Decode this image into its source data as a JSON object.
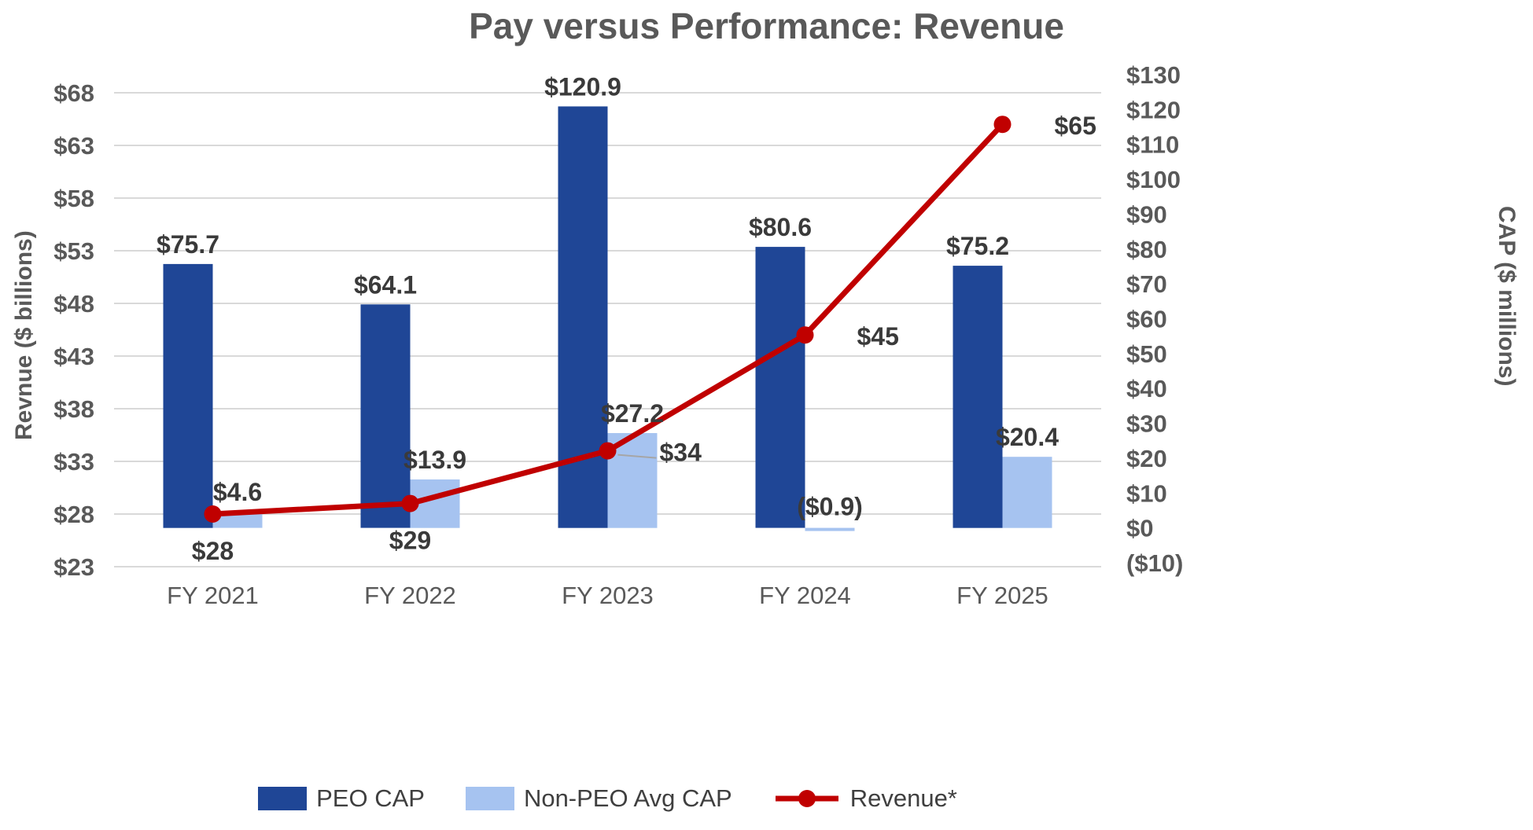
{
  "title": "Pay versus Performance: Revenue",
  "left_axis": {
    "title": "Revnue ($ billions)",
    "min": 23,
    "max": 68,
    "tick_values": [
      68,
      63,
      58,
      53,
      48,
      43,
      38,
      33,
      28,
      23
    ],
    "tick_labels": [
      "$68",
      "$63",
      "$58",
      "$53",
      "$48",
      "$43",
      "$38",
      "$33",
      "$28",
      "$23"
    ]
  },
  "right_axis": {
    "title": "CAP ($ millions)",
    "min": -10,
    "max": 130,
    "tick_values": [
      130,
      120,
      110,
      100,
      90,
      80,
      70,
      60,
      50,
      40,
      30,
      20,
      10,
      0,
      -10
    ],
    "tick_labels": [
      "$130",
      "$120",
      "$110",
      "$100",
      "$90",
      "$80",
      "$70",
      "$60",
      "$50",
      "$40",
      "$30",
      "$20",
      "$10",
      "$0",
      "($10)"
    ]
  },
  "colors": {
    "peo_bar": "#1f4696",
    "non_peo_bar": "#a6c3f0",
    "revenue_line": "#c00000",
    "gridline": "#d9d9d9",
    "leader": "#a6a6a6"
  },
  "chart_data": {
    "type": "combo",
    "categories": [
      "FY 2021",
      "FY 2022",
      "FY 2023",
      "FY 2024",
      "FY 2025"
    ],
    "series": [
      {
        "name": "PEO CAP",
        "type": "bar",
        "axis": "right",
        "color": "#1f4696",
        "values": [
          75.7,
          64.1,
          120.9,
          80.6,
          75.2
        ],
        "data_labels": [
          "$75.7",
          "$64.1",
          "$120.9",
          "$80.6",
          "$75.2"
        ]
      },
      {
        "name": "Non-PEO Avg CAP",
        "type": "bar",
        "axis": "right",
        "color": "#a6c3f0",
        "values": [
          4.6,
          13.9,
          27.2,
          -0.9,
          20.4
        ],
        "data_labels": [
          "$4.6",
          "$13.9",
          "$27.2",
          "($0.9)",
          "$20.4"
        ]
      },
      {
        "name": "Revenue*",
        "type": "line",
        "axis": "left",
        "color": "#c00000",
        "values": [
          28,
          29,
          34,
          45,
          65
        ],
        "data_labels": [
          "$28",
          "$29",
          "$34",
          "$45",
          "$65"
        ],
        "label_placement": [
          "below",
          "below",
          "right-leader",
          "right",
          "right"
        ]
      }
    ],
    "left_axis_range": [
      23,
      68
    ],
    "right_axis_range": [
      -10,
      130
    ],
    "grid": "horizontal",
    "legend_position": "bottom"
  }
}
